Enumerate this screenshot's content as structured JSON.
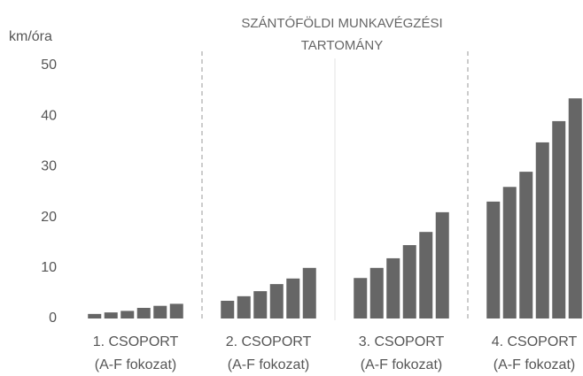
{
  "chart_data": {
    "type": "bar",
    "title": [
      "SZÁNTÓFÖLDI MUNKAVÉGZÉSI",
      "TARTOMÁNY"
    ],
    "y_label": "km/óra",
    "categories": [
      [
        "1. CSOPORT",
        "(A-F fokozat)"
      ],
      [
        "2. CSOPORT",
        "(A-F fokozat)"
      ],
      [
        "3. CSOPORT",
        "(A-F fokozat)"
      ],
      [
        "4. CSOPORT",
        "(A-F fokozat)"
      ]
    ],
    "values": [
      [
        0.9,
        1.2,
        1.5,
        2.1,
        2.5,
        2.9
      ],
      [
        3.5,
        4.4,
        5.4,
        6.8,
        7.9,
        10.0
      ],
      [
        8.0,
        10.0,
        11.9,
        14.5,
        17.1,
        21.0
      ],
      [
        23.1,
        26.0,
        29.0,
        34.8,
        39.0,
        43.5
      ]
    ],
    "color": "#666666",
    "ylim": [
      0,
      50
    ],
    "yticks": [
      0,
      10,
      20,
      30,
      40,
      50
    ]
  }
}
